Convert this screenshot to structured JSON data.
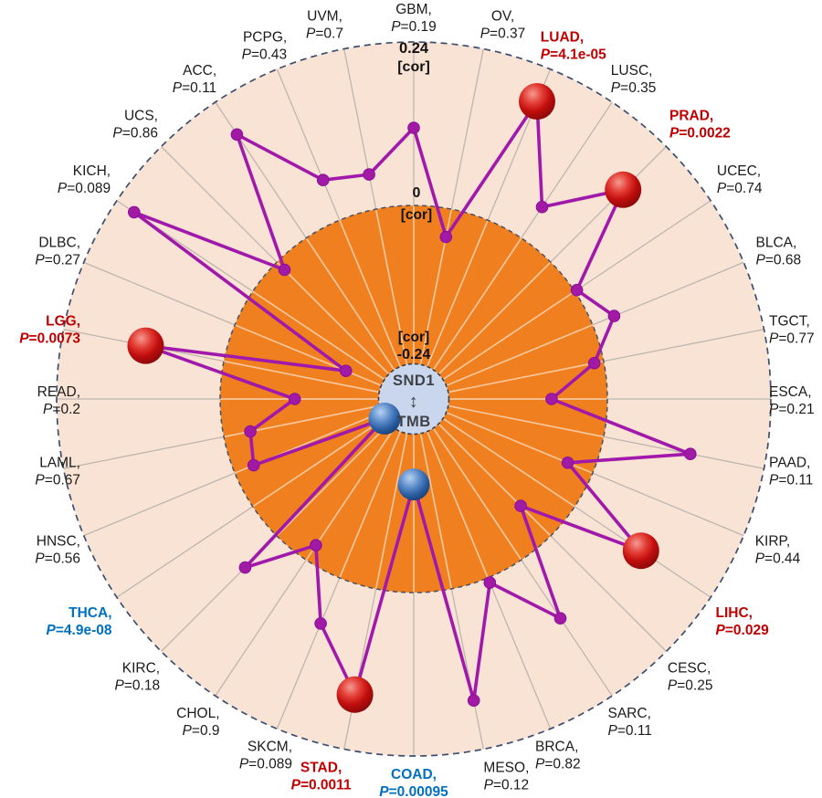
{
  "figure": {
    "center": {
      "gene": "SND1",
      "arrow": "↕",
      "metric": "TMB"
    },
    "scale": {
      "outer_value": "0.24",
      "outer_unit": "[cor]",
      "zero_value": "0",
      "zero_unit": "[cor]",
      "inner_unit": "[cor]",
      "inner_value": "-0.24"
    }
  },
  "colors": {
    "background": "#ffffff",
    "outer_band": "#f9e3d5",
    "inner_band": "#f0801f",
    "hub_fill": "#c9d6ee",
    "hub_border": "#3f3f3f",
    "outer_ring_dash": "#3d4f70",
    "mid_ring_dash": "#4b5060",
    "spoke_outer": "#beb6af",
    "spoke_inner": "rgba(255,255,255,0.55)",
    "line": "#a019aa",
    "dot": "#a01aa6",
    "dot_stroke": "#8c0f96",
    "sphere_red_main": "#c00d0d",
    "sphere_blue_main": "#2c5fa3",
    "label_ns": "#1a1a1a",
    "label_positive": "#c00000",
    "label_negative": "#0070c0"
  },
  "chart_data": {
    "type": "radar",
    "radial_axis": "[cor]",
    "axis_range": [
      -0.24,
      0.24
    ],
    "ring_boundaries": [
      -0.24,
      0,
      0.24
    ],
    "direction": "clockwise",
    "start_angle_deg": 0,
    "legend_position": "none",
    "series": [
      {
        "name": "SND1 vs TMB correlation [cor]",
        "points": [
          {
            "label": "GBM",
            "p": "0.19",
            "cor": 0.112,
            "significance": "ns",
            "marker": "dot"
          },
          {
            "label": "OV",
            "p": "0.37",
            "cor": -0.046,
            "significance": "ns",
            "marker": "dot"
          },
          {
            "label": "LUAD",
            "p": "4.1e-05",
            "cor": 0.188,
            "significance": "positive",
            "marker": "sphere_red"
          },
          {
            "label": "LUSC",
            "p": "0.35",
            "cor": 0.052,
            "significance": "ns",
            "marker": "dot"
          },
          {
            "label": "PRAD",
            "p": "0.0022",
            "cor": 0.149,
            "significance": "positive",
            "marker": "sphere_red"
          },
          {
            "label": "UCEC",
            "p": "0.74",
            "cor": 0.0,
            "significance": "ns",
            "marker": "dot"
          },
          {
            "label": "BLCA",
            "p": "0.68",
            "cor": 0.031,
            "significance": "ns",
            "marker": "dot"
          },
          {
            "label": "TGCT",
            "p": "0.77",
            "cor": -0.018,
            "significance": "ns",
            "marker": "dot"
          },
          {
            "label": "ESCA",
            "p": "0.21",
            "cor": -0.087,
            "significance": "ns",
            "marker": "dot"
          },
          {
            "label": "PAAD",
            "p": "0.11",
            "cor": 0.128,
            "significance": "ns",
            "marker": "dot"
          },
          {
            "label": "KIRP",
            "p": "0.44",
            "cor": -0.044,
            "significance": "ns",
            "marker": "dot"
          },
          {
            "label": "LIHC",
            "p": "0.029",
            "cor": 0.115,
            "significance": "positive",
            "marker": "sphere_red"
          },
          {
            "label": "CESC",
            "p": "0.25",
            "cor": -0.067,
            "significance": "ns",
            "marker": "dot"
          },
          {
            "label": "SARC",
            "p": "0.11",
            "cor": 0.101,
            "significance": "ns",
            "marker": "dot"
          },
          {
            "label": "BRCA",
            "p": "0.82",
            "cor": 0.004,
            "significance": "ns",
            "marker": "dot"
          },
          {
            "label": "MESO",
            "p": "0.12",
            "cor": 0.166,
            "significance": "ns",
            "marker": "dot"
          },
          {
            "label": "COAD",
            "p": "0.00095",
            "cor": -0.165,
            "significance": "negative",
            "marker": "sphere_blue"
          },
          {
            "label": "STAD",
            "p": "0.0011",
            "cor": 0.157,
            "significance": "positive",
            "marker": "sphere_red"
          },
          {
            "label": "SKCM",
            "p": "0.089",
            "cor": 0.07,
            "significance": "ns",
            "marker": "dot"
          },
          {
            "label": "CHOL",
            "p": "0.9",
            "cor": -0.03,
            "significance": "ns",
            "marker": "dot"
          },
          {
            "label": "KIRC",
            "p": "0.18",
            "cor": 0.063,
            "significance": "ns",
            "marker": "dot"
          },
          {
            "label": "THCA",
            "p": "4.9e-08",
            "cor": -0.24,
            "significance": "negative",
            "marker": "sphere_blue"
          },
          {
            "label": "HNSC",
            "p": "0.56",
            "cor": -0.034,
            "significance": "ns",
            "marker": "dot"
          },
          {
            "label": "LAML",
            "p": "0.67",
            "cor": -0.044,
            "significance": "ns",
            "marker": "dot"
          },
          {
            "label": "READ",
            "p": "0.2",
            "cor": -0.115,
            "significance": "ns",
            "marker": "dot"
          },
          {
            "label": "LGG",
            "p": "0.0073",
            "cor": 0.115,
            "significance": "positive",
            "marker": "sphere_red"
          },
          {
            "label": "DLBC",
            "p": "0.27",
            "cor": -0.183,
            "significance": "ns",
            "marker": "dot"
          },
          {
            "label": "KICH",
            "p": "0.089",
            "cor": 0.209,
            "significance": "ns",
            "marker": "dot"
          },
          {
            "label": "UCS",
            "p": "0.86",
            "cor": -0.02,
            "significance": "ns",
            "marker": "dot"
          },
          {
            "label": "ACC",
            "p": "0.11",
            "cor": 0.182,
            "significance": "ns",
            "marker": "dot"
          },
          {
            "label": "PCPG",
            "p": "0.43",
            "cor": 0.061,
            "significance": "ns",
            "marker": "dot"
          },
          {
            "label": "UVM",
            "p": "0.7",
            "cor": 0.049,
            "significance": "ns",
            "marker": "dot"
          }
        ]
      }
    ]
  }
}
